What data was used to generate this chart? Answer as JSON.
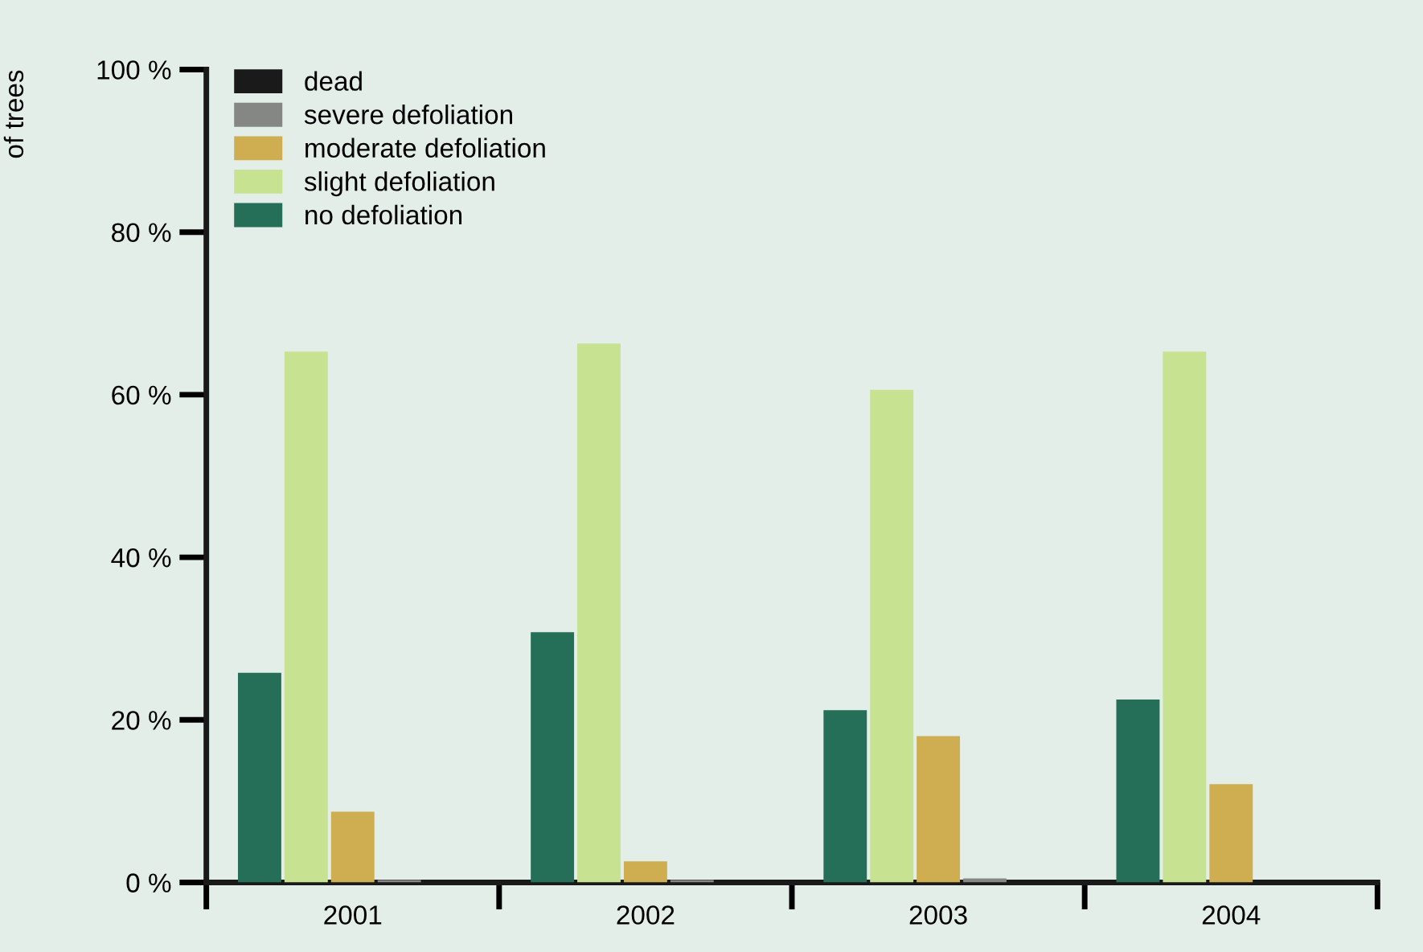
{
  "chart_data": {
    "type": "bar",
    "ylabel": "of trees",
    "categories": [
      "2001",
      "2002",
      "2003",
      "2004"
    ],
    "series": [
      {
        "name": "no defoliation",
        "color": "#256f59",
        "values": [
          25.8,
          30.8,
          21.2,
          22.5
        ]
      },
      {
        "name": "slight defoliation",
        "color": "#c7e391",
        "values": [
          65.3,
          66.3,
          60.6,
          65.3
        ]
      },
      {
        "name": "moderate defoliation",
        "color": "#ceae51",
        "values": [
          8.7,
          2.6,
          18.0,
          12.1
        ]
      },
      {
        "name": "severe defoliation",
        "color": "#858784",
        "values": [
          0.3,
          0.3,
          0.5,
          null
        ]
      },
      {
        "name": "dead",
        "color": "#1a1a1a",
        "values": [
          0.1,
          0.1,
          0.1,
          0.1
        ]
      }
    ],
    "ylim": [
      0,
      100
    ],
    "yticks": [
      {
        "value": 0,
        "label": "0 %"
      },
      {
        "value": 20,
        "label": "20 %"
      },
      {
        "value": 40,
        "label": "40 %"
      },
      {
        "value": 60,
        "label": "60 %"
      },
      {
        "value": 80,
        "label": "80 %"
      },
      {
        "value": 100,
        "label": "100 %"
      }
    ],
    "grid": false,
    "legend": "top left"
  }
}
